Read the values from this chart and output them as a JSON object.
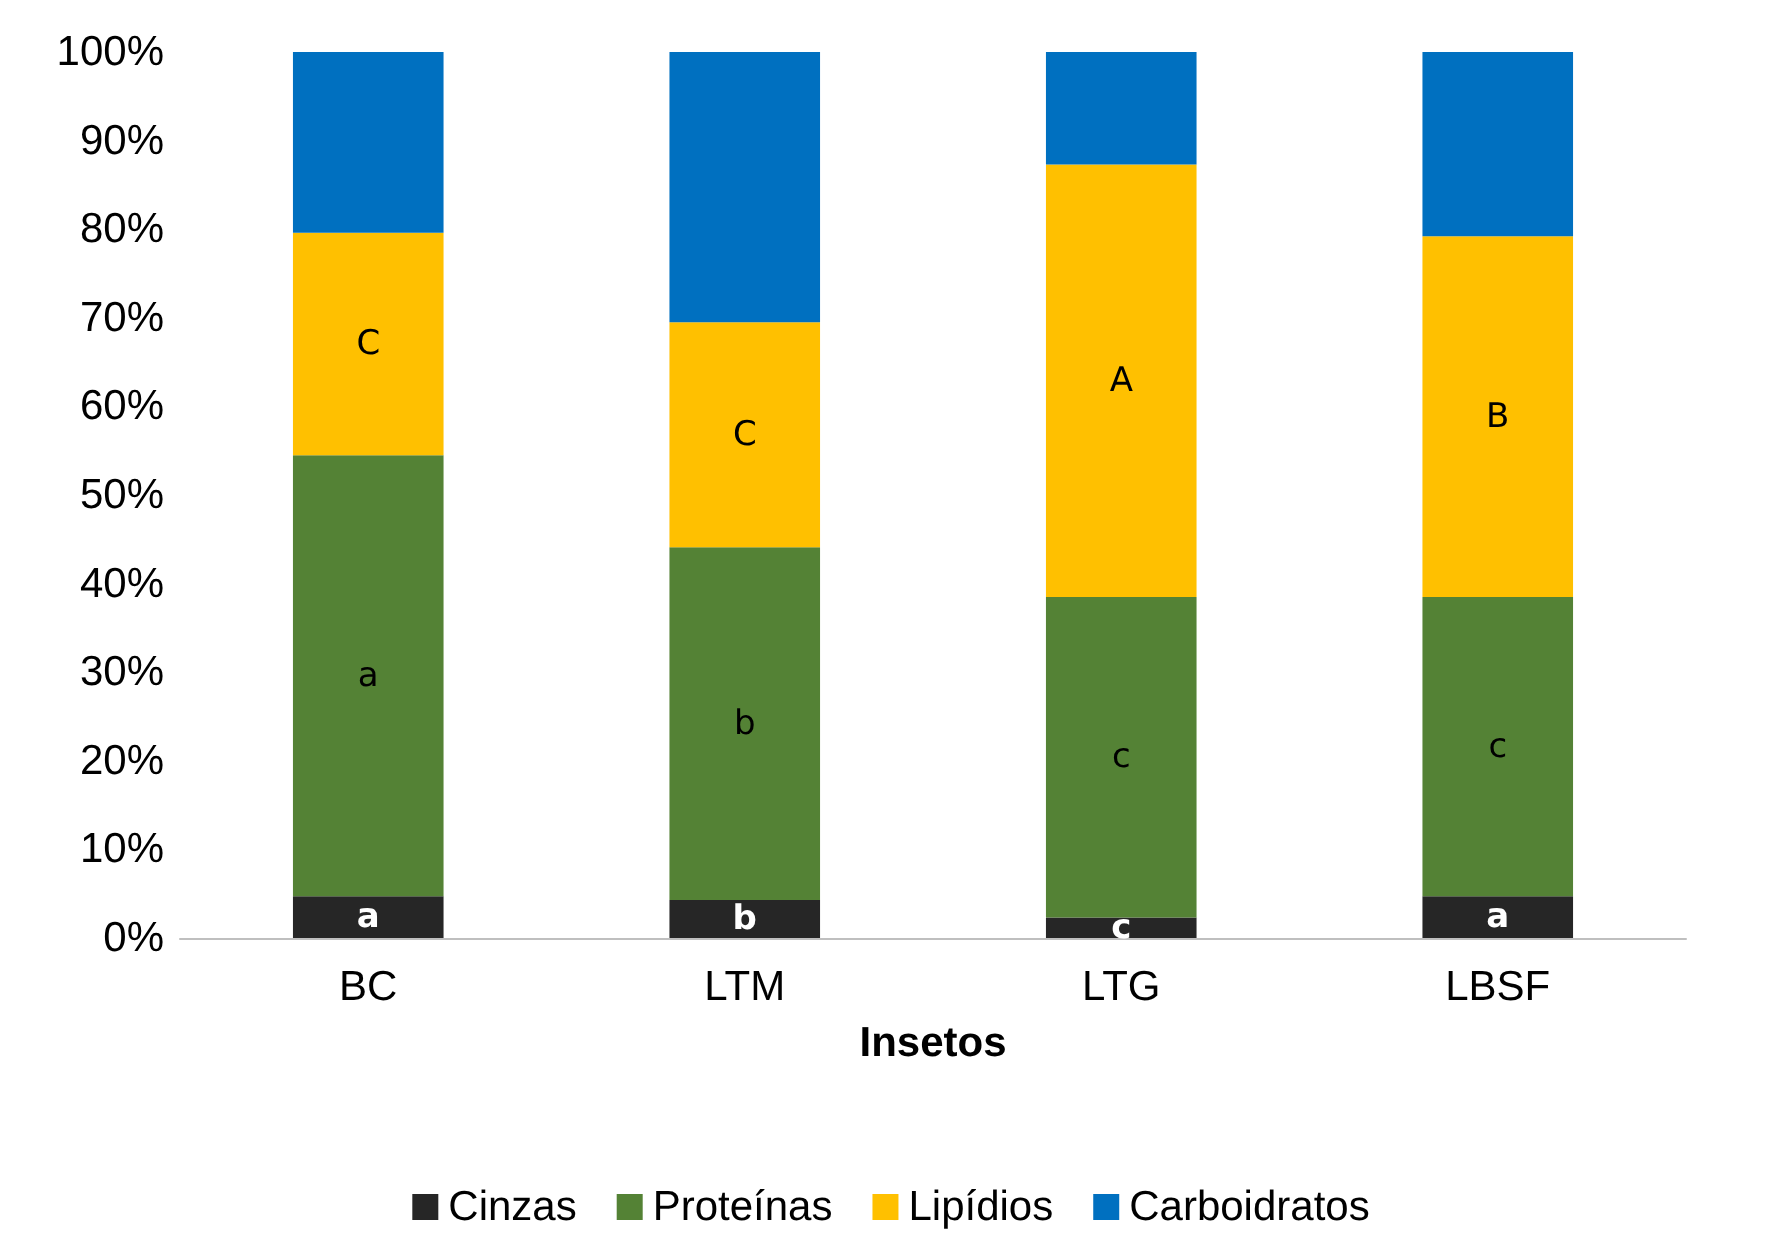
{
  "chart_data": {
    "type": "bar",
    "stacked": true,
    "xlabel": "Insetos",
    "categories": [
      "BC",
      "LTM",
      "LTG",
      "LBSF"
    ],
    "ylim": [
      0,
      100
    ],
    "yticks": [
      {
        "value": 0,
        "label": "0%"
      },
      {
        "value": 10,
        "label": "10%"
      },
      {
        "value": 20,
        "label": "20%"
      },
      {
        "value": 30,
        "label": "30%"
      },
      {
        "value": 40,
        "label": "40%"
      },
      {
        "value": 50,
        "label": "50%"
      },
      {
        "value": 60,
        "label": "60%"
      },
      {
        "value": 70,
        "label": "70%"
      },
      {
        "value": 80,
        "label": "80%"
      },
      {
        "value": 90,
        "label": "90%"
      },
      {
        "value": 100,
        "label": "100%"
      }
    ],
    "grid": false,
    "legend": "bottom",
    "series": [
      {
        "name": "Cinzas",
        "color": "#262626",
        "values": [
          4.7,
          4.3,
          2.3,
          4.7
        ],
        "value_labels": [
          "a",
          "b",
          "c",
          "a"
        ]
      },
      {
        "name": "Proteínas",
        "color": "#548235",
        "values": [
          49.8,
          39.8,
          36.2,
          33.8
        ],
        "value_labels": [
          "a",
          "b",
          "c",
          "c"
        ]
      },
      {
        "name": "Lipídios",
        "color": "#ffc000",
        "values": [
          25.1,
          25.4,
          48.8,
          40.7
        ],
        "value_labels": [
          "C",
          "C",
          "A",
          "B"
        ]
      },
      {
        "name": "Carboidratos",
        "color": "#0070c0",
        "values": [
          20.4,
          30.5,
          12.7,
          20.8
        ]
      }
    ]
  }
}
